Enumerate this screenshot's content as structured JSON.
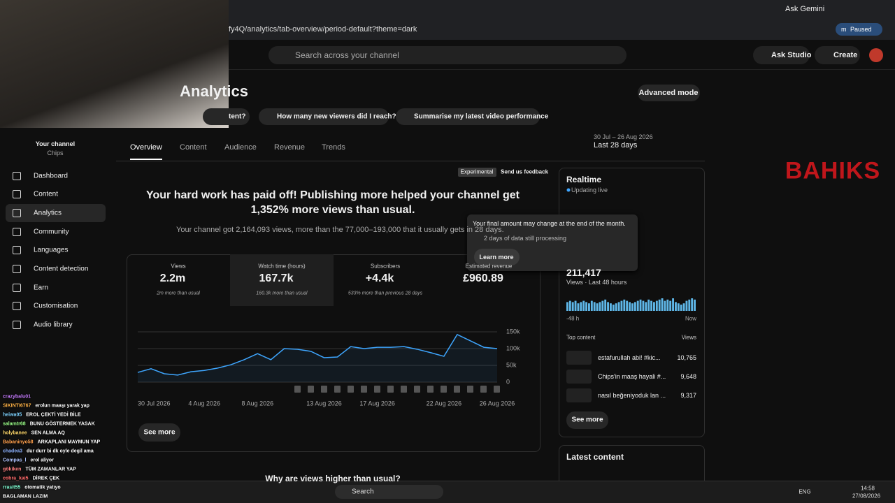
{
  "browser": {
    "url": "fy4Q/analytics/tab-overview/period-default?theme=dark",
    "ask_gemini": "Ask Gemini",
    "profile_initial": "m",
    "profile_status": "Paused"
  },
  "header": {
    "search_placeholder": "Search across your channel",
    "ask_studio": "Ask Studio",
    "create": "Create"
  },
  "page": {
    "title": "Analytics",
    "advanced_mode": "Advanced mode",
    "chips": [
      "tent?",
      "How many new viewers did I reach?",
      "Summarise my latest video performance"
    ],
    "date_range": "30 Jul – 26 Aug 2026",
    "period": "Last 28 days",
    "tabs": [
      "Overview",
      "Content",
      "Audience",
      "Revenue",
      "Trends"
    ]
  },
  "sidebar": {
    "channel_label": "Your channel",
    "channel_name": "Chips",
    "items": [
      "Dashboard",
      "Content",
      "Analytics",
      "Community",
      "Languages",
      "Content detection",
      "Earn",
      "Customisation",
      "Audio library"
    ]
  },
  "insight": {
    "badge": "Experimental",
    "feedback": "Send us feedback",
    "headline": [
      "Your hard work has paid off! Publishing more helped your channel get",
      "1,352% more views than usual."
    ],
    "summary": "Your channel got 2,164,093 views, more than the 77,000–193,000 that it usually gets in 28 days."
  },
  "metrics": [
    {
      "label": "Views",
      "value": "2.2m",
      "note": "2m more than usual"
    },
    {
      "label": "Watch time (hours)",
      "value": "167.7k",
      "note": "160.3k more than usual"
    },
    {
      "label": "Subscribers",
      "value": "+4.4k",
      "note": "533% more than previous 28 days"
    },
    {
      "label": "Estimated revenue",
      "value": "£960.89"
    }
  ],
  "tooltip": {
    "text": "Your final amount may change at the end of the month.",
    "processing": "2 days of data still processing",
    "button": "Learn more"
  },
  "chart_data": {
    "type": "line",
    "color": "#3ea6ff",
    "categories": [
      "30 Jul 2026",
      null,
      null,
      null,
      null,
      "4 Aug 2026",
      null,
      null,
      null,
      "8 Aug 2026",
      null,
      null,
      null,
      null,
      "13 Aug 2026",
      null,
      null,
      null,
      "17 Aug 2026",
      null,
      null,
      null,
      null,
      "22 Aug 2026",
      null,
      null,
      null,
      "26 Aug 2026"
    ],
    "values": [
      29000,
      40000,
      25000,
      21000,
      31000,
      35000,
      42000,
      52000,
      67000,
      85000,
      67000,
      100000,
      98000,
      92000,
      73000,
      75000,
      106000,
      100000,
      104000,
      104000,
      106000,
      98000,
      88000,
      77000,
      142000,
      123000,
      104000,
      100000
    ],
    "ylim": [
      0,
      150000
    ],
    "yticks": [
      0,
      {
        "value": 50000,
        "label": "50k"
      },
      {
        "value": 100000,
        "label": "100k"
      },
      {
        "value": 150000,
        "label": "150k"
      }
    ]
  },
  "see_more": "See more",
  "why_heading": "Why are views higher than usual?",
  "realtime": {
    "title": "Realtime",
    "status": "Updating live",
    "views": "211,417",
    "views_label": "Views · Last 48 hours",
    "axis_start": "-48 h",
    "axis_end": "Now",
    "bar_values": [
      7,
      8,
      7,
      8,
      6,
      7,
      8,
      7,
      6,
      8,
      7,
      6,
      7,
      8,
      9,
      7,
      6,
      5,
      6,
      7,
      8,
      9,
      8,
      7,
      6,
      7,
      8,
      9,
      8,
      7,
      9,
      8,
      7,
      8,
      9,
      10,
      8,
      9,
      8,
      10,
      7,
      6,
      5,
      6,
      8,
      9,
      10,
      9
    ],
    "top_content": "Top content",
    "views_header": "Views",
    "videos": [
      {
        "title": "estafurullah abi! #kic...",
        "views": "10,765"
      },
      {
        "title": "Chips'in maaş hayali #...",
        "views": "9,648"
      },
      {
        "title": "nasıl beğeniyoduk lan ...",
        "views": "9,317"
      }
    ],
    "see_more": "See more"
  },
  "latest_content": "Latest content",
  "chat": [
    {
      "user": "crazybalu01",
      "color": "#c77dff"
    },
    {
      "user": "SIKINTI6767",
      "msg": "erolun maaşı yarak yap",
      "color": "#ffb347"
    },
    {
      "user": "heiwa05",
      "msg": "EROL ÇEKTİ YEDİ BİLE",
      "color": "#7fd3ff"
    },
    {
      "user": "salamtr68",
      "msg": "BUNU GÖSTERMEK YASAK",
      "color": "#9cff8a"
    },
    {
      "user": "holybanee",
      "msg": "SEN ALMA AQ",
      "color": "#ffd86b"
    },
    {
      "user": "Babaninyo58",
      "msg": "ARKAPLANI MAYMUN YAP",
      "color": "#ffa04d"
    },
    {
      "user": "chadea3",
      "msg": "dur durr bi dk oyle degil ama",
      "color": "#8fb3ff"
    },
    {
      "user": "Compas_l",
      "msg": "erol aliyor",
      "color": "#b0c4ff"
    },
    {
      "user": "gökiken",
      "msg": "TÜM ZAMANLAR YAP",
      "color": "#ff8080"
    },
    {
      "user": "cobra_kai5",
      "msg": "DİREK ÇEK",
      "color": "#ff6b6b"
    },
    {
      "user": "rrasit55",
      "msg": "otomatik yatıyo",
      "color": "#7fffd4"
    },
    {
      "msg": "BAGLAMAN LAZIM",
      "color": "#ffffff"
    }
  ],
  "logo": "BAHIKS",
  "taskbar": {
    "search": "Search",
    "lang": "ENG",
    "time": "14:58",
    "date": "27/08/2026"
  }
}
